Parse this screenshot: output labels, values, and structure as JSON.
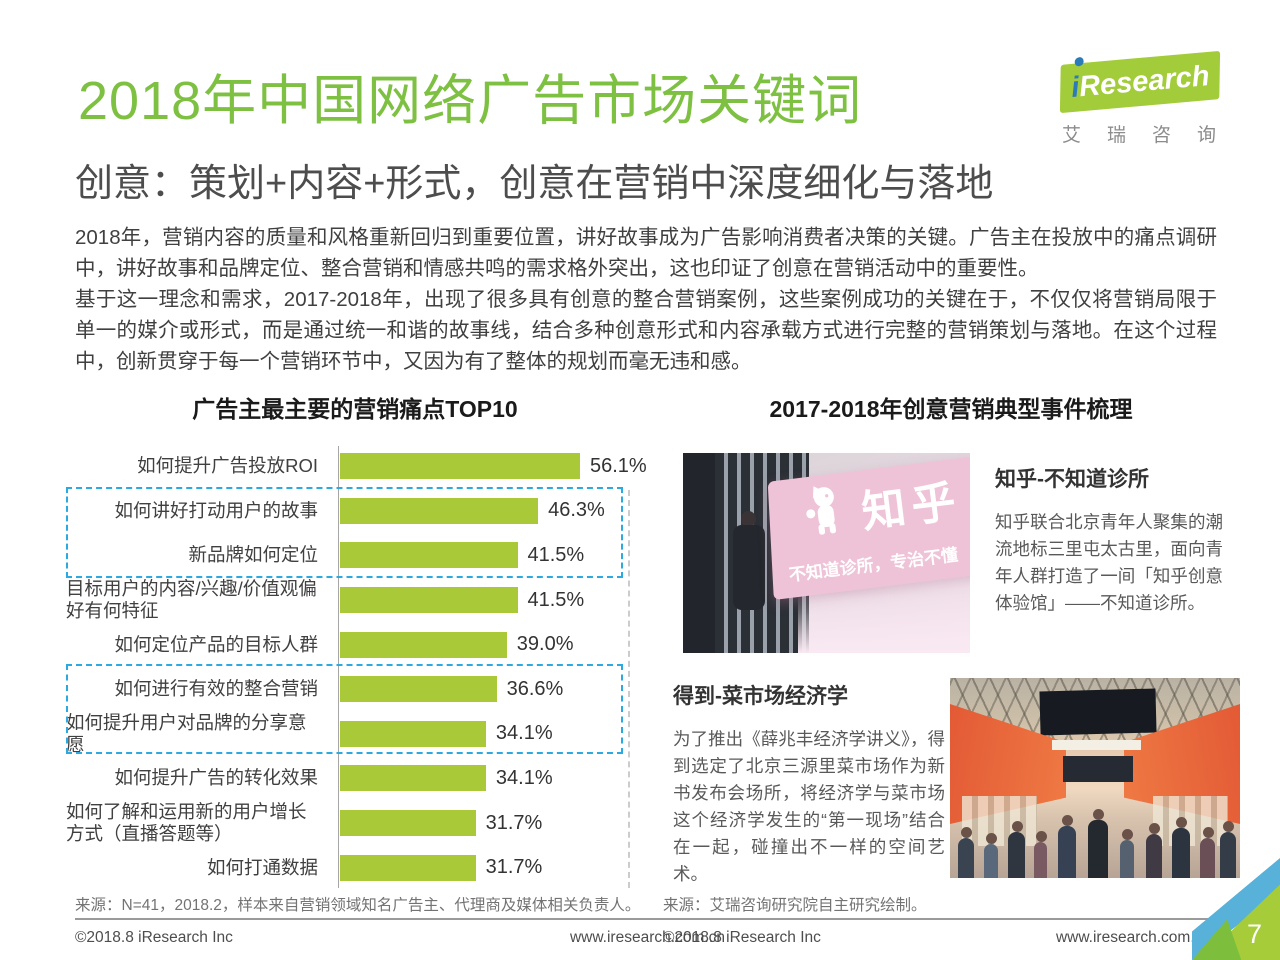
{
  "header": {
    "title": "2018年中国网络广告市场关键词",
    "subtitle": "创意：策划+内容+形式，创意在营销中深度细化与落地"
  },
  "logo": {
    "i": "i",
    "brand": "Research",
    "chinese": "艾瑞咨询"
  },
  "intro": {
    "paragraph1": "2018年，营销内容的质量和风格重新回归到重要位置，讲好故事成为广告影响消费者决策的关键。广告主在投放中的痛点调研中，讲好故事和品牌定位、整合营销和情感共鸣的需求格外突出，这也印证了创意在营销活动中的重要性。",
    "paragraph2": "基于这一理念和需求，2017-2018年，出现了很多具有创意的整合营销案例，这些案例成功的关键在于，不仅仅将营销局限于单一的媒介或形式，而是通过统一和谐的故事线，结合多种创意形式和内容承载方式进行完整的营销策划与落地。在这个过程中，创新贯穿于每一个营销环节中，又因为有了整体的规划而毫无违和感。"
  },
  "chart_data": {
    "type": "bar",
    "orientation": "horizontal",
    "title": "广告主最主要的营销痛点TOP10",
    "categories": [
      "如何提升广告投放ROI",
      "如何讲好打动用户的故事",
      "新品牌如何定位",
      "目标用户的内容/兴趣/价值观偏好有何特征",
      "如何定位产品的目标人群",
      "如何进行有效的整合营销",
      "如何提升用户对品牌的分享意愿",
      "如何提升广告的转化效果",
      "如何了解和运用新的用户增长方式（直播答题等）",
      "如何打通数据"
    ],
    "values": [
      56.1,
      46.3,
      41.5,
      41.5,
      39.0,
      36.6,
      34.1,
      34.1,
      31.7,
      31.7
    ],
    "value_labels": [
      "56.1%",
      "46.3%",
      "41.5%",
      "41.5%",
      "39.0%",
      "36.6%",
      "34.1%",
      "34.1%",
      "31.7%",
      "31.7%"
    ],
    "unit": "%",
    "xlim": [
      0,
      60
    ],
    "bar_color": "#a9c938",
    "highlight_color": "#2ba9e0",
    "highlighted_rows": [
      [
        1,
        2
      ],
      [
        5,
        6
      ]
    ],
    "grid": false,
    "source": "来源：N=41，2018.2，样本来自营销领域知名广告主、代理商及媒体相关负责人。"
  },
  "events": {
    "title": "2017-2018年创意营销典型事件梳理",
    "items": [
      {
        "heading": "知乎-不知道诊所",
        "description": "知乎联合北京青年人聚集的潮流地标三里屯太古里，面向青年人群打造了一间「知乎创意体验馆」——不知道诊所。",
        "photo_sign_brand": "知乎",
        "photo_sign_slogan": "不知道诊所，专治不懂"
      },
      {
        "heading": "得到-菜市场经济学",
        "description": "为了推出《薛兆丰经济学讲义》，得到选定了北京三源里菜市场作为新书发布会场所，将经济学与菜市场这个经济学发生的“第一现场”结合在一起，碰撞出不一样的空间艺术。"
      }
    ],
    "source": "来源：艾瑞咨询研究院自主研究绘制。"
  },
  "footer": {
    "left": {
      "copyright": "©2018.8 iResearch Inc",
      "website": "www.iresearch.com.cn"
    },
    "right": {
      "copyright": "©2018.8 iResearch Inc",
      "website": "www.iresearch.com.cn"
    },
    "page_number": "7"
  }
}
